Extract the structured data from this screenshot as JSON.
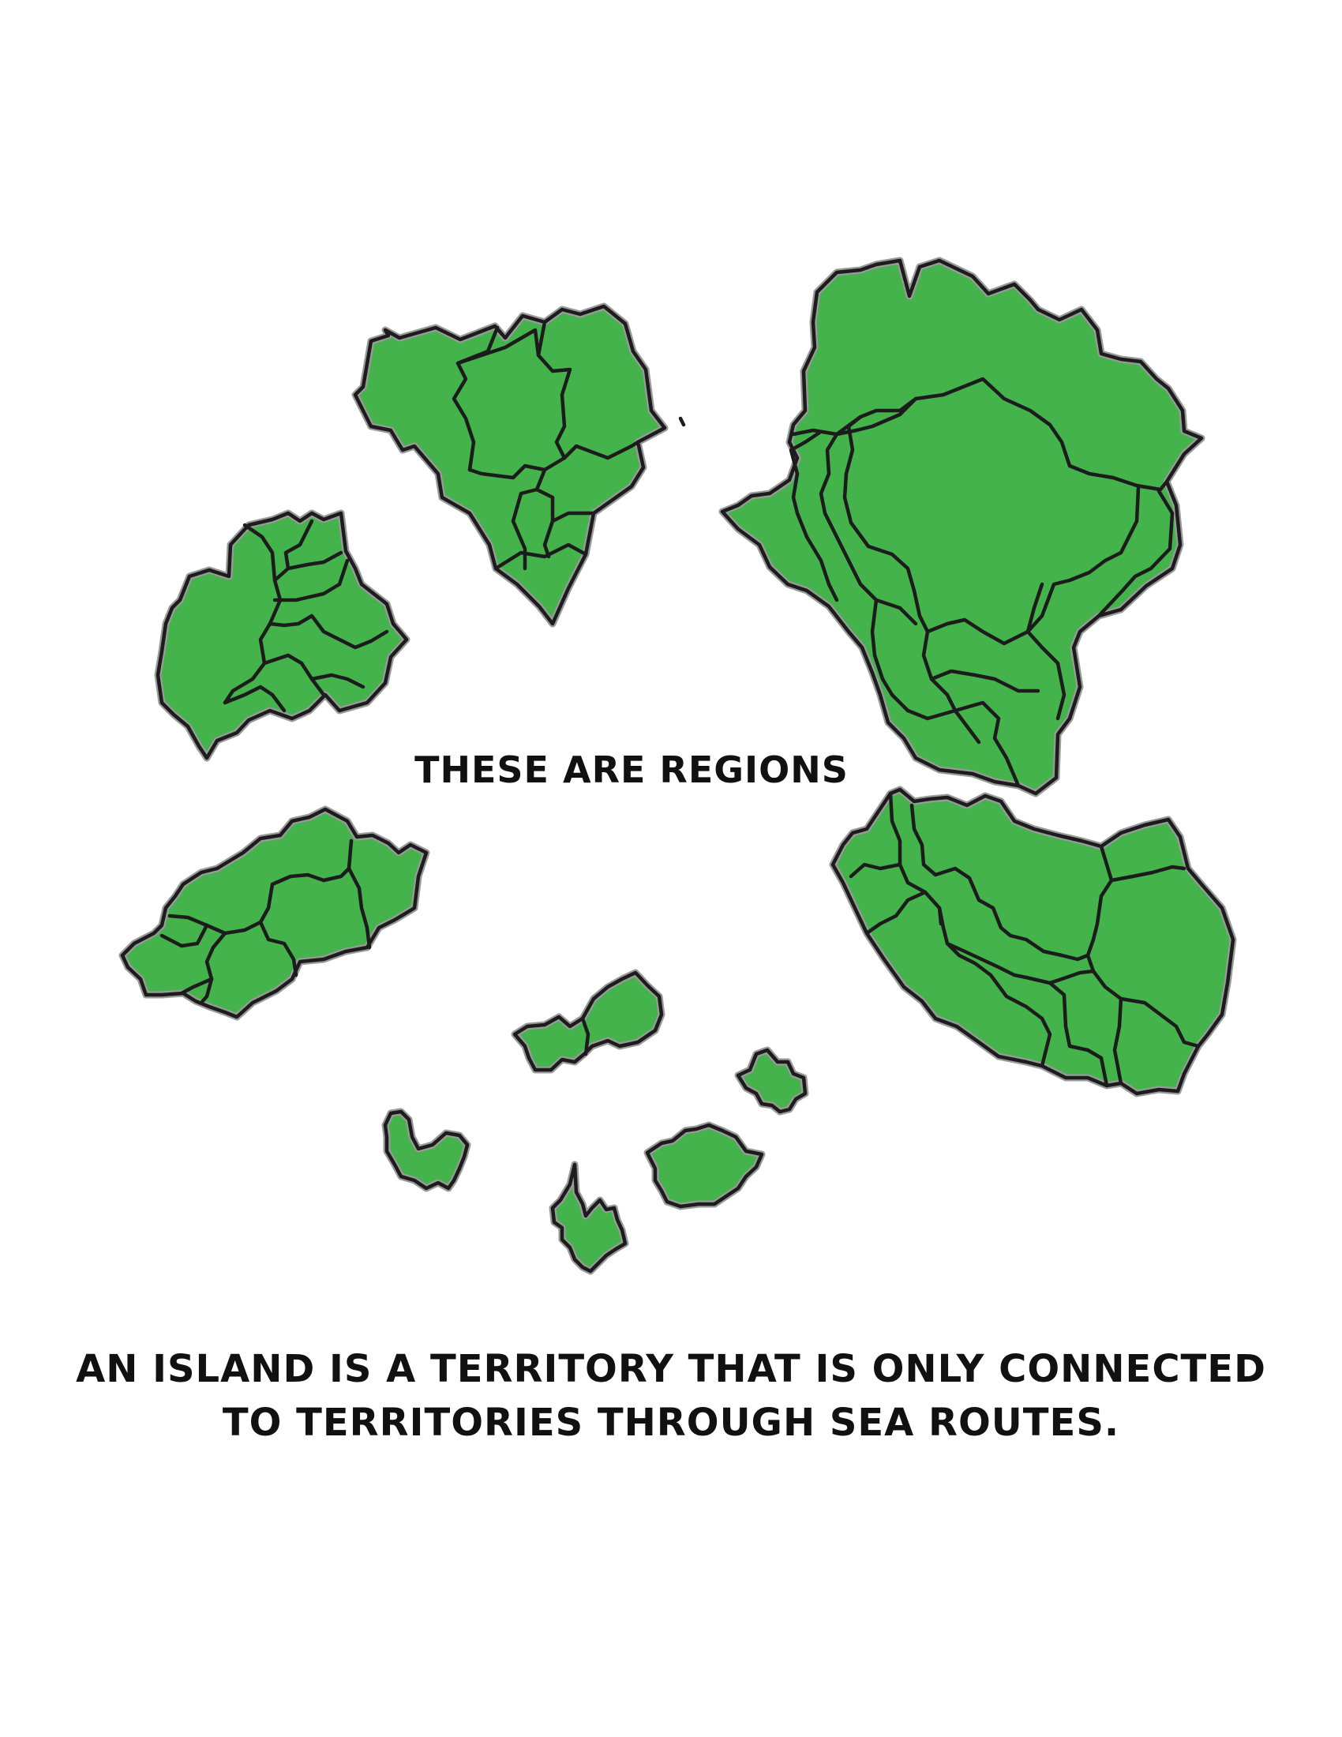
{
  "region_label": "THESE ARE REGIONS",
  "caption": {
    "line1": "AN ISLAND IS A TERRITORY THAT IS ONLY CONNECTED",
    "line2": "TO TERRITORIES THROUGH SEA ROUTES."
  },
  "colors": {
    "land": "#44b34b",
    "outline": "#1c1c1c",
    "halo": "#9a9a9a"
  }
}
